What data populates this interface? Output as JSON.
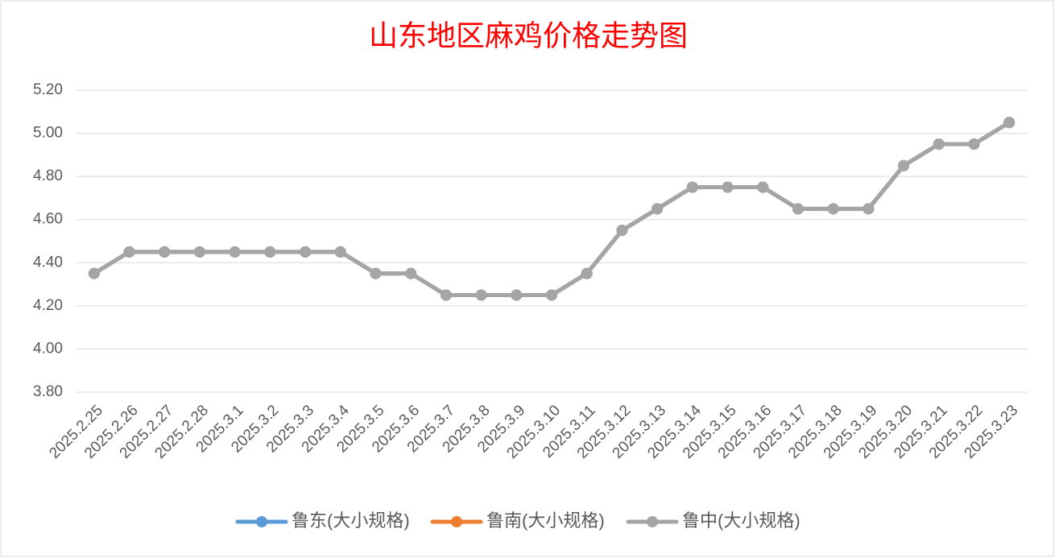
{
  "chart_data": {
    "type": "line",
    "title": "山东地区麻鸡价格走势图",
    "categories": [
      "2025.2.25",
      "2025.2.26",
      "2025.2.27",
      "2025.2.28",
      "2025.3.1",
      "2025.3.2",
      "2025.3.3",
      "2025.3.4",
      "2025.3.5",
      "2025.3.6",
      "2025.3.7",
      "2025.3.8",
      "2025.3.9",
      "2025.3.10",
      "2025.3.11",
      "2025.3.12",
      "2025.3.13",
      "2025.3.14",
      "2025.3.15",
      "2025.3.16",
      "2025.3.17",
      "2025.3.18",
      "2025.3.19",
      "2025.3.20",
      "2025.3.21",
      "2025.3.22",
      "2025.3.23"
    ],
    "series": [
      {
        "name": "鲁东(大小规格)",
        "color": "#5b9bd5",
        "values": [
          4.35,
          4.45,
          4.45,
          4.45,
          4.45,
          4.45,
          4.45,
          4.45,
          4.35,
          4.35,
          4.25,
          4.25,
          4.25,
          4.25,
          4.35,
          4.55,
          4.65,
          4.75,
          4.75,
          4.75,
          4.65,
          4.65,
          4.65,
          4.85,
          4.95,
          4.95,
          5.05
        ]
      },
      {
        "name": "鲁南(大小规格)",
        "color": "#ed7d31",
        "values": [
          4.35,
          4.45,
          4.45,
          4.45,
          4.45,
          4.45,
          4.45,
          4.45,
          4.35,
          4.35,
          4.25,
          4.25,
          4.25,
          4.25,
          4.35,
          4.55,
          4.65,
          4.75,
          4.75,
          4.75,
          4.65,
          4.65,
          4.65,
          4.85,
          4.95,
          4.95,
          5.05
        ]
      },
      {
        "name": "鲁中(大小规格)",
        "color": "#a5a5a5",
        "values": [
          4.35,
          4.45,
          4.45,
          4.45,
          4.45,
          4.45,
          4.45,
          4.45,
          4.35,
          4.35,
          4.25,
          4.25,
          4.25,
          4.25,
          4.35,
          4.55,
          4.65,
          4.75,
          4.75,
          4.75,
          4.65,
          4.65,
          4.65,
          4.85,
          4.95,
          4.95,
          5.05
        ]
      }
    ],
    "ylim": [
      3.8,
      5.2
    ],
    "yticks": [
      {
        "value": 3.8,
        "label": "3.80"
      },
      {
        "value": 4.0,
        "label": "4.00"
      },
      {
        "value": 4.2,
        "label": "4.20"
      },
      {
        "value": 4.4,
        "label": "4.40"
      },
      {
        "value": 4.6,
        "label": "4.60"
      },
      {
        "value": 4.8,
        "label": "4.80"
      },
      {
        "value": 5.0,
        "label": "5.00"
      },
      {
        "value": 5.2,
        "label": "5.20"
      }
    ],
    "grid": true,
    "legend": "bottom"
  }
}
